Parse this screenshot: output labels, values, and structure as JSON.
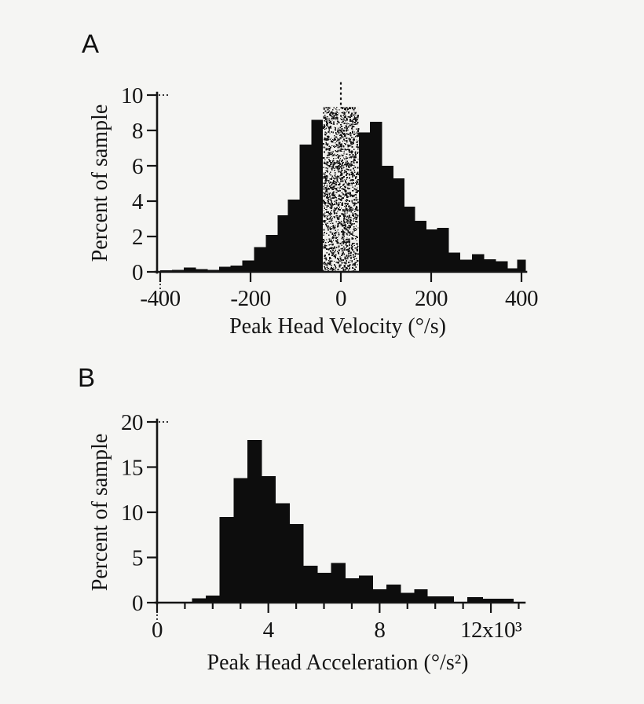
{
  "page": {
    "background": "#f5f5f3",
    "ink": "#141414",
    "stipple_base": "#efeeeb"
  },
  "chart_data": [
    {
      "type": "bar",
      "panel_label": "A",
      "xlabel": "Peak Head Velocity (°/s)",
      "ylabel": "Percent of sample",
      "xlim": [
        -410,
        411
      ],
      "ylim": [
        0,
        10
      ],
      "grid": false,
      "legend": null,
      "bar_color": "#0d0d0d",
      "stipple_region_note": "central bars from -40 to +40 deg/s drawn as gray stipple, dashed marker above 0",
      "zero_marker_x": 0,
      "xticks": [
        {
          "v": -400,
          "label": "-400"
        },
        {
          "v": -200,
          "label": "-200"
        },
        {
          "v": 0,
          "label": "0"
        },
        {
          "v": 200,
          "label": "200"
        },
        {
          "v": 400,
          "label": "400"
        }
      ],
      "yticks": [
        {
          "v": 0,
          "label": "0"
        },
        {
          "v": 2,
          "label": "2"
        },
        {
          "v": 4,
          "label": "4"
        },
        {
          "v": 6,
          "label": "6"
        },
        {
          "v": 8,
          "label": "8"
        },
        {
          "v": 10,
          "label": "10"
        }
      ],
      "minor_xticks": [],
      "bars": [
        {
          "x0": -400,
          "x1": -374,
          "h": 0.1,
          "fill": "black"
        },
        {
          "x0": -374,
          "x1": -348,
          "h": 0.12,
          "fill": "black"
        },
        {
          "x0": -348,
          "x1": -322,
          "h": 0.25,
          "fill": "black"
        },
        {
          "x0": -322,
          "x1": -296,
          "h": 0.15,
          "fill": "black"
        },
        {
          "x0": -296,
          "x1": -270,
          "h": 0.12,
          "fill": "black"
        },
        {
          "x0": -270,
          "x1": -244,
          "h": 0.3,
          "fill": "black"
        },
        {
          "x0": -244,
          "x1": -218,
          "h": 0.35,
          "fill": "black"
        },
        {
          "x0": -218,
          "x1": -192,
          "h": 0.65,
          "fill": "black"
        },
        {
          "x0": -192,
          "x1": -166,
          "h": 1.4,
          "fill": "black"
        },
        {
          "x0": -166,
          "x1": -140,
          "h": 2.1,
          "fill": "black"
        },
        {
          "x0": -140,
          "x1": -117,
          "h": 3.2,
          "fill": "black"
        },
        {
          "x0": -117,
          "x1": -91,
          "h": 4.1,
          "fill": "black"
        },
        {
          "x0": -91,
          "x1": -65,
          "h": 7.2,
          "fill": "black"
        },
        {
          "x0": -65,
          "x1": -40,
          "h": 8.6,
          "fill": "black"
        },
        {
          "x0": -40,
          "x1": 40,
          "h": 9.35,
          "fill": "stipple"
        },
        {
          "x0": 40,
          "x1": 64,
          "h": 7.9,
          "fill": "black"
        },
        {
          "x0": 64,
          "x1": 90,
          "h": 8.5,
          "fill": "black"
        },
        {
          "x0": 90,
          "x1": 115,
          "h": 6.0,
          "fill": "black"
        },
        {
          "x0": 115,
          "x1": 140,
          "h": 5.3,
          "fill": "black"
        },
        {
          "x0": 140,
          "x1": 163,
          "h": 3.7,
          "fill": "black"
        },
        {
          "x0": 163,
          "x1": 188,
          "h": 2.9,
          "fill": "black"
        },
        {
          "x0": 188,
          "x1": 213,
          "h": 2.4,
          "fill": "black"
        },
        {
          "x0": 213,
          "x1": 238,
          "h": 2.5,
          "fill": "black"
        },
        {
          "x0": 238,
          "x1": 263,
          "h": 1.1,
          "fill": "black"
        },
        {
          "x0": 263,
          "x1": 290,
          "h": 0.7,
          "fill": "black"
        },
        {
          "x0": 290,
          "x1": 316,
          "h": 1.0,
          "fill": "black"
        },
        {
          "x0": 316,
          "x1": 342,
          "h": 0.72,
          "fill": "black"
        },
        {
          "x0": 342,
          "x1": 368,
          "h": 0.6,
          "fill": "black"
        },
        {
          "x0": 368,
          "x1": 390,
          "h": 0.2,
          "fill": "black"
        },
        {
          "x0": 390,
          "x1": 408,
          "h": 0.7,
          "fill": "black"
        }
      ]
    },
    {
      "type": "bar",
      "panel_label": "B",
      "xlabel": "Peak Head Acceleration (°/s²)",
      "ylabel": "Percent of sample",
      "xlim": [
        0,
        13200
      ],
      "ylim": [
        0,
        20
      ],
      "grid": false,
      "legend": null,
      "bar_color": "#0d0d0d",
      "zero_marker_x": null,
      "xticks": [
        {
          "v": 0,
          "label": "0"
        },
        {
          "v": 4000,
          "label": "4"
        },
        {
          "v": 8000,
          "label": "8"
        },
        {
          "v": 12000,
          "label": "12x10³"
        }
      ],
      "yticks": [
        {
          "v": 0,
          "label": "0"
        },
        {
          "v": 5,
          "label": "5"
        },
        {
          "v": 10,
          "label": "10"
        },
        {
          "v": 15,
          "label": "15"
        },
        {
          "v": 20,
          "label": "20"
        }
      ],
      "minor_xticks": [
        1000,
        2000,
        3000,
        5000,
        6000,
        7000,
        9000,
        10000,
        11000,
        13000
      ],
      "bars": [
        {
          "x0": 1250,
          "x1": 1750,
          "h": 0.5,
          "fill": "black"
        },
        {
          "x0": 1750,
          "x1": 2250,
          "h": 0.8,
          "fill": "black"
        },
        {
          "x0": 2250,
          "x1": 2750,
          "h": 9.5,
          "fill": "black"
        },
        {
          "x0": 2750,
          "x1": 3250,
          "h": 13.8,
          "fill": "black"
        },
        {
          "x0": 3250,
          "x1": 3750,
          "h": 18.0,
          "fill": "black"
        },
        {
          "x0": 3750,
          "x1": 4250,
          "h": 14.0,
          "fill": "black"
        },
        {
          "x0": 4250,
          "x1": 4750,
          "h": 11.0,
          "fill": "black"
        },
        {
          "x0": 4750,
          "x1": 5250,
          "h": 8.7,
          "fill": "black"
        },
        {
          "x0": 5250,
          "x1": 5750,
          "h": 4.1,
          "fill": "black"
        },
        {
          "x0": 5750,
          "x1": 6250,
          "h": 3.3,
          "fill": "black"
        },
        {
          "x0": 6250,
          "x1": 6750,
          "h": 4.4,
          "fill": "black"
        },
        {
          "x0": 6750,
          "x1": 7250,
          "h": 2.7,
          "fill": "black"
        },
        {
          "x0": 7250,
          "x1": 7750,
          "h": 3.0,
          "fill": "black"
        },
        {
          "x0": 7750,
          "x1": 8250,
          "h": 1.5,
          "fill": "black"
        },
        {
          "x0": 8250,
          "x1": 8750,
          "h": 2.0,
          "fill": "black"
        },
        {
          "x0": 8750,
          "x1": 9250,
          "h": 1.1,
          "fill": "black"
        },
        {
          "x0": 9250,
          "x1": 9700,
          "h": 1.5,
          "fill": "black"
        },
        {
          "x0": 9700,
          "x1": 10650,
          "h": 0.7,
          "fill": "black"
        },
        {
          "x0": 11150,
          "x1": 11700,
          "h": 0.6,
          "fill": "black"
        },
        {
          "x0": 11700,
          "x1": 12800,
          "h": 0.45,
          "fill": "black"
        }
      ]
    }
  ]
}
